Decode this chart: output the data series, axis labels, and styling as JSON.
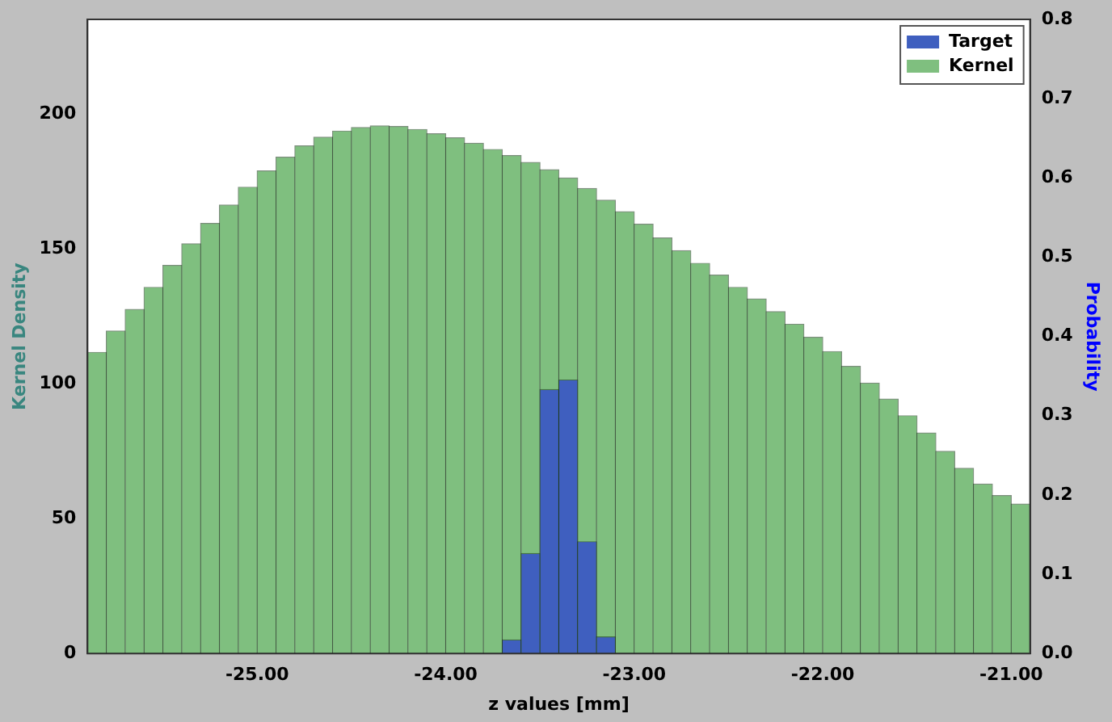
{
  "chart_data": {
    "type": "histogram",
    "xlabel": "z values [mm]",
    "ylabel": "Kernel Density",
    "y2label": "Probability",
    "bins": [
      -25.9,
      -25.8,
      -25.7,
      -25.6,
      -25.5,
      -25.4,
      -25.3,
      -25.2,
      -25.1,
      -25.0,
      -24.9,
      -24.8,
      -24.7,
      -24.6,
      -24.5,
      -24.4,
      -24.3,
      -24.2,
      -24.1,
      -24.0,
      -23.9,
      -23.8,
      -23.7,
      -23.6,
      -23.5,
      -23.4,
      -23.3,
      -23.2,
      -23.1,
      -23.0,
      -22.9,
      -22.8,
      -22.7,
      -22.6,
      -22.5,
      -22.4,
      -22.3,
      -22.2,
      -22.1,
      -22.0,
      -21.9,
      -21.8,
      -21.7,
      -21.6,
      -21.5,
      -21.4,
      -21.3,
      -21.2,
      -21.1,
      -21.0,
      -20.9
    ],
    "xlim": [
      -25.9,
      -20.9
    ],
    "xticks": [
      {
        "value": -25,
        "label": "-25.00"
      },
      {
        "value": -24,
        "label": "-24.00"
      },
      {
        "value": -23,
        "label": "-23.00"
      },
      {
        "value": -22,
        "label": "-22.00"
      },
      {
        "value": -21,
        "label": "-21.00"
      }
    ],
    "ylim": [
      0,
      235
    ],
    "yticks": [
      0,
      50,
      100,
      150,
      200
    ],
    "y2lim": [
      0,
      0.8
    ],
    "y2ticks": [
      {
        "value": 0,
        "label": "0.0"
      },
      {
        "value": 0.1,
        "label": "0.1"
      },
      {
        "value": 0.2,
        "label": "0.2"
      },
      {
        "value": 0.3,
        "label": "0.3"
      },
      {
        "value": 0.4,
        "label": "0.4"
      },
      {
        "value": 0.5,
        "label": "0.5"
      },
      {
        "value": 0.6,
        "label": "0.6"
      },
      {
        "value": 0.7,
        "label": "0.7"
      },
      {
        "value": 0.8,
        "label": "0.8"
      }
    ],
    "grid": false,
    "legend": "top right",
    "series": [
      {
        "name": "Target",
        "color": "#3f5fbf",
        "axis": "y2",
        "values": [
          null,
          null,
          null,
          null,
          null,
          null,
          null,
          null,
          null,
          null,
          null,
          null,
          null,
          null,
          null,
          null,
          null,
          null,
          null,
          null,
          null,
          null,
          0.017,
          0.126,
          0.333,
          0.345,
          0.141,
          0.021,
          null,
          null,
          null,
          null,
          null,
          null,
          null,
          null,
          null,
          null,
          null,
          null,
          null,
          null,
          null,
          null,
          null,
          null,
          null,
          null,
          null,
          null
        ]
      },
      {
        "name": "Kernel",
        "color": "#7fbf7f",
        "values": [
          111.6,
          119.5,
          127.5,
          135.7,
          143.8,
          151.8,
          159.4,
          166.2,
          172.8,
          178.8,
          183.9,
          188.1,
          191.3,
          193.6,
          194.9,
          195.5,
          195.3,
          194.2,
          192.6,
          191.1,
          189.1,
          186.8,
          184.5,
          182,
          179.3,
          176.2,
          172.3,
          168,
          163.7,
          159.1,
          154,
          149.3,
          144.6,
          140.2,
          135.7,
          131.4,
          126.7,
          122,
          117.2,
          111.9,
          106.4,
          100.2,
          94.3,
          88.1,
          81.7,
          74.9,
          68.6,
          62.8,
          58.5,
          55.4
        ]
      }
    ]
  }
}
